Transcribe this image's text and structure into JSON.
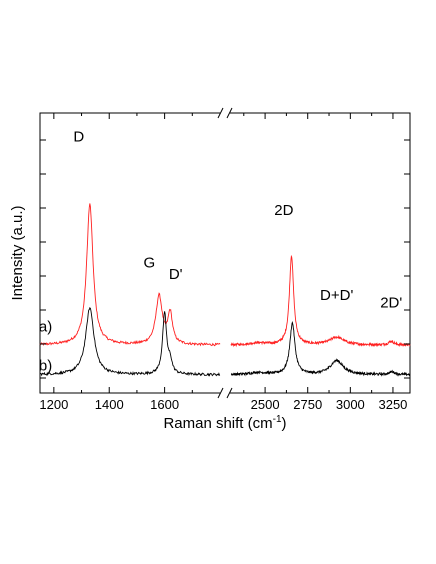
{
  "chart_data": {
    "type": "line",
    "title": "",
    "xlabel": "Raman shift (cm",
    "xlabel_sup": "-1",
    "xlabel_close": ")",
    "ylabel": "Intensity (a.u.)",
    "x_break": true,
    "x_segments": [
      {
        "xlim": [
          1150,
          1800
        ],
        "ticks": [
          1200,
          1400,
          1600
        ],
        "tick_labels": [
          "1200",
          "1400",
          "1600"
        ]
      },
      {
        "xlim": [
          2300,
          3350
        ],
        "ticks": [
          2500,
          2750,
          3000,
          3250
        ],
        "tick_labels": [
          "2500",
          "2750",
          "3000",
          "3250"
        ]
      }
    ],
    "grid": false,
    "colors": {
      "a": "#ff2020",
      "b": "#000000"
    },
    "series": [
      {
        "label": "a)",
        "color": "#ff2020",
        "baseline": 0.92,
        "peaks": [
          {
            "center": 1330,
            "height": 4.17,
            "width": 14
          },
          {
            "center": 1580,
            "height": 1.44,
            "width": 14
          },
          {
            "center": 1620,
            "height": 0.9,
            "width": 10
          },
          {
            "center": 2460,
            "height": 0.06,
            "width": 60
          },
          {
            "center": 2655,
            "height": 2.64,
            "width": 15
          },
          {
            "center": 2920,
            "height": 0.23,
            "width": 50
          },
          {
            "center": 3240,
            "height": 0.11,
            "width": 18
          }
        ]
      },
      {
        "label": "b)",
        "color": "#000000",
        "baseline": 0.04,
        "peaks": [
          {
            "center": 1330,
            "height": 1.98,
            "width": 18
          },
          {
            "center": 1600,
            "height": 1.79,
            "width": 9
          },
          {
            "center": 1620,
            "height": 0.35,
            "width": 8
          },
          {
            "center": 2460,
            "height": 0.06,
            "width": 60
          },
          {
            "center": 2660,
            "height": 1.52,
            "width": 18
          },
          {
            "center": 2920,
            "height": 0.42,
            "width": 45
          },
          {
            "center": 3245,
            "height": 0.08,
            "width": 20
          }
        ]
      }
    ],
    "annotations": [
      {
        "text": "D",
        "x": 1290,
        "y": 6.95
      },
      {
        "text": "G",
        "x": 1545,
        "y": 3.22
      },
      {
        "text": "D'",
        "x": 1640,
        "y": 2.88
      },
      {
        "text": "2D",
        "x": 2610,
        "y": 4.77
      },
      {
        "text": "D+D'",
        "x": 2920,
        "y": 2.25
      },
      {
        "text": "2D'",
        "x": 3240,
        "y": 2.03
      },
      {
        "text": "a)",
        "x": 1170,
        "y": 1.32
      },
      {
        "text": "b)",
        "x": 1170,
        "y": 0.17
      }
    ],
    "ylim": [
      -0.5,
      7.8
    ]
  }
}
